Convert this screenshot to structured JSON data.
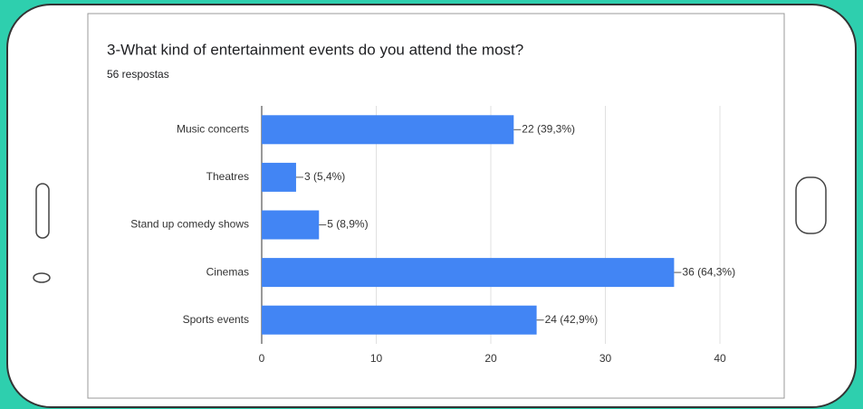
{
  "chart_data": {
    "type": "bar",
    "orientation": "horizontal",
    "title": "3-What kind of entertainment events do you attend the most?",
    "subtitle": "56 respostas",
    "categories": [
      "Music concerts",
      "Theatres",
      "Stand up comedy shows",
      "Cinemas",
      "Sports events"
    ],
    "values": [
      22,
      3,
      5,
      36,
      24
    ],
    "value_labels": [
      "22 (39,3%)",
      "3 (5,4%)",
      "5 (8,9%)",
      "36 (64,3%)",
      "24 (42,9%)"
    ],
    "color": "#4285f4",
    "xlim": [
      0,
      40
    ],
    "xticks": [
      0,
      10,
      20,
      30,
      40
    ],
    "grid": true
  }
}
